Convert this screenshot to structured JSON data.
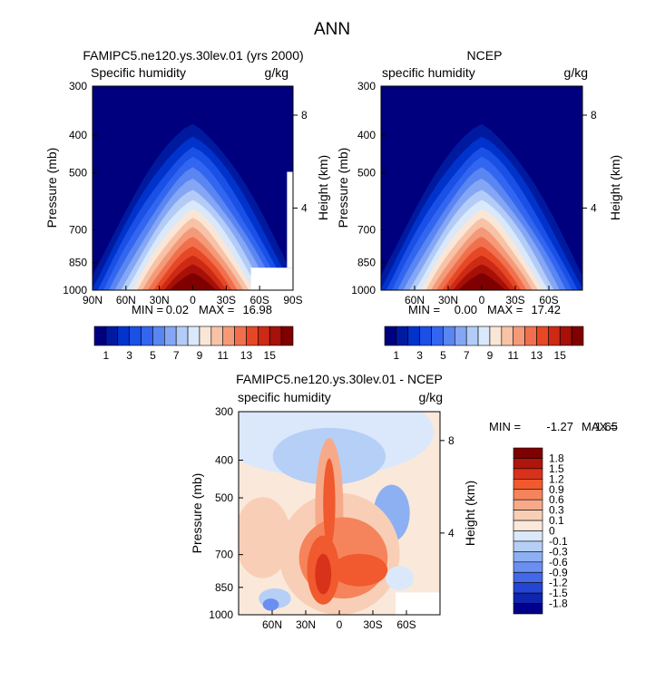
{
  "figure_title": "ANN",
  "chart_data": [
    {
      "type": "heatmap",
      "title": "FAMIPC5.ne120.ys.30lev.01 (yrs 2000)",
      "subtitle_left": "Specific humidity",
      "subtitle_right": "g/kg",
      "ylabel": "Pressure (mb)",
      "ylabel_right": "Height (km)",
      "x_ticks": [
        "90N",
        "60N",
        "30N",
        "0",
        "30S",
        "60S",
        "90S"
      ],
      "y_ticks": [
        "300",
        "400",
        "500",
        "700",
        "850",
        "1000"
      ],
      "y_ticks_right": [
        "8",
        "4"
      ],
      "min_label": "MIN =",
      "min_value": "0.02",
      "max_label": "MAX =",
      "max_value": "16.98",
      "field": {
        "peak": 16.98,
        "floor": 0.02,
        "peak_lat": 0,
        "masked_lower_right": true
      },
      "colorbar_labels": [
        "1",
        "3",
        "5",
        "7",
        "9",
        "11",
        "13",
        "15"
      ]
    },
    {
      "type": "heatmap",
      "title": "NCEP",
      "subtitle_left": "specific humidity",
      "subtitle_right": "g/kg",
      "ylabel": "Pressure (mb)",
      "ylabel_right": "Height (km)",
      "x_ticks": [
        "60N",
        "30N",
        "0",
        "30S",
        "60S"
      ],
      "y_ticks": [
        "300",
        "400",
        "500",
        "700",
        "850",
        "1000"
      ],
      "y_ticks_right": [
        "8",
        "4"
      ],
      "min_label": "MIN =",
      "min_value": "0.00",
      "max_label": "MAX =",
      "max_value": "17.42",
      "field": {
        "peak": 17.42,
        "floor": 0.0,
        "peak_lat": 0,
        "masked_lower_right": false
      },
      "colorbar_labels": [
        "1",
        "3",
        "5",
        "7",
        "9",
        "11",
        "13",
        "15"
      ]
    },
    {
      "type": "heatmap",
      "title": "FAMIPC5.ne120.ys.30lev.01 - NCEP",
      "subtitle_left": "specific humidity",
      "subtitle_right": "g/kg",
      "ylabel": "Pressure (mb)",
      "ylabel_right": "Height (km)",
      "x_ticks": [
        "60N",
        "30N",
        "0",
        "30S",
        "60S"
      ],
      "y_ticks": [
        "300",
        "400",
        "500",
        "700",
        "850",
        "1000"
      ],
      "y_ticks_right": [
        "8",
        "4"
      ],
      "min_label": "MIN =",
      "min_value": "-1.27",
      "max_label": "MAX =",
      "max_value": "1.65",
      "colorbar_labels": [
        "1.8",
        "1.5",
        "1.2",
        "0.9",
        "0.6",
        "0.3",
        "0.1",
        "0",
        "-0.1",
        "-0.3",
        "-0.6",
        "-0.9",
        "-1.2",
        "-1.5",
        "-1.8"
      ]
    }
  ],
  "colors": {
    "seq": [
      "#00007f",
      "#001a9f",
      "#0033cc",
      "#1a50e6",
      "#3366f0",
      "#5a86f2",
      "#84a6f5",
      "#b3ccf7",
      "#d9e8fa",
      "#fae6d6",
      "#f7c2a5",
      "#f49a78",
      "#f0704e",
      "#e64826",
      "#cc2a14",
      "#a61008",
      "#7f0000"
    ],
    "div": [
      "#7f0000",
      "#b0150b",
      "#d9321a",
      "#f05a2e",
      "#f5845c",
      "#f7aa8a",
      "#f8cfb6",
      "#fae9da",
      "#dbe8fb",
      "#b5cff7",
      "#8cb0f2",
      "#6a8ff0",
      "#4169e8",
      "#2446d2",
      "#0f25ad",
      "#02008a"
    ]
  }
}
